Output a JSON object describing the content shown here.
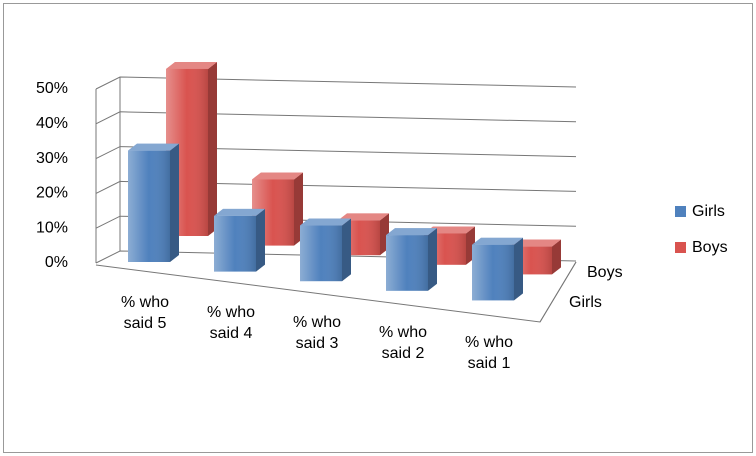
{
  "chart_data": {
    "type": "bar3d",
    "categories": [
      "% who said 5",
      "% who said 4",
      "% who said 3",
      "% who said 2",
      "% who said 1"
    ],
    "series": [
      {
        "name": "Girls",
        "color": "#4f81bd",
        "values": [
          32,
          16,
          16,
          16,
          16
        ]
      },
      {
        "name": "Boys",
        "color": "#d9534f",
        "values": [
          48,
          19,
          10,
          9,
          8
        ]
      }
    ],
    "ylim": [
      0,
      50
    ],
    "yticks": [
      {
        "value": 0,
        "label": "0%"
      },
      {
        "value": 10,
        "label": "10%"
      },
      {
        "value": 20,
        "label": "20%"
      },
      {
        "value": 30,
        "label": "30%"
      },
      {
        "value": 40,
        "label": "40%"
      },
      {
        "value": 50,
        "label": "50%"
      }
    ],
    "grid": true,
    "legend": "right"
  }
}
